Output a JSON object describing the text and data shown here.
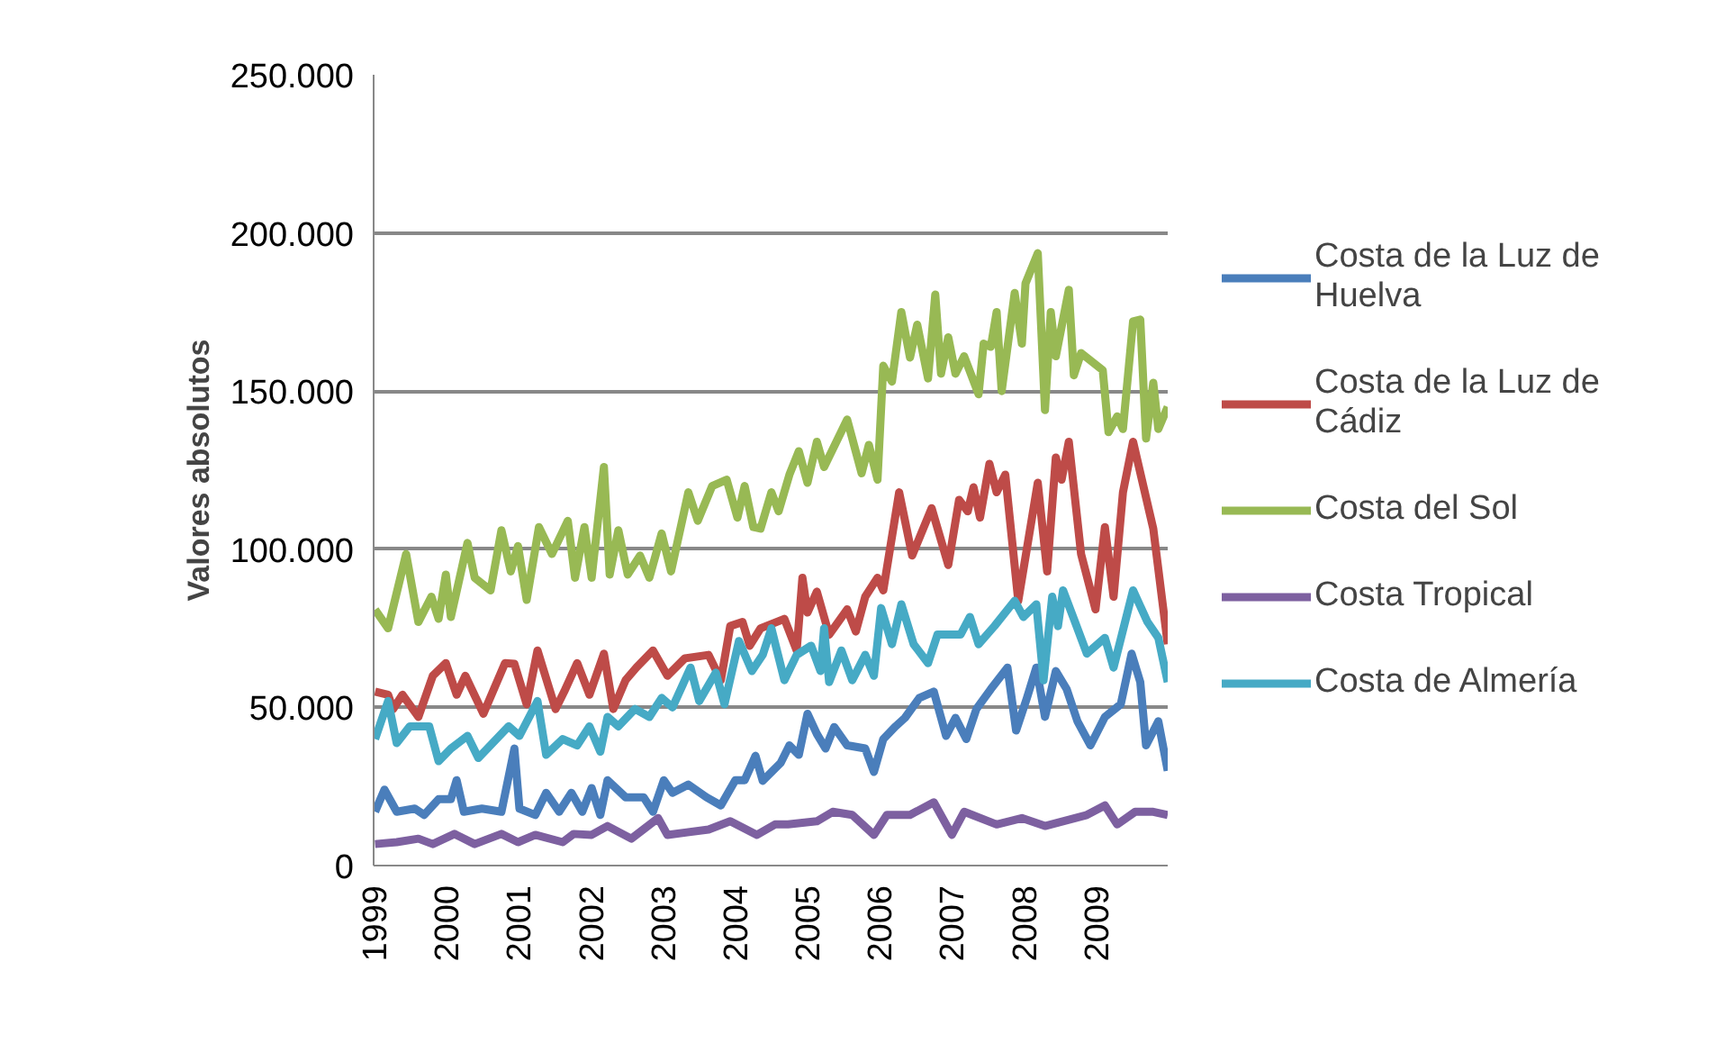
{
  "chart_data": {
    "type": "line",
    "ylabel": "Valores absolutos",
    "xlim": [
      1999,
      2010
    ],
    "xticks": [
      1999,
      2000,
      2001,
      2002,
      2003,
      2004,
      2005,
      2006,
      2007,
      2008,
      2009
    ],
    "ylim": [
      0,
      250000
    ],
    "yticks": [
      0,
      {
        "value": 50000,
        "label": "50.000"
      },
      {
        "value": 100000,
        "label": "100.000"
      },
      {
        "value": 150000,
        "label": "150.000"
      },
      {
        "value": 200000,
        "label": "200.000"
      },
      {
        "value": 250000,
        "label": "250.000"
      }
    ],
    "grid": "y",
    "legend": "right",
    "marker": "none",
    "line_style": "solid",
    "series": [
      {
        "name": "Costa de la Luz de Huelva",
        "color": "#4a7ebb",
        "x": [
          1999.02,
          1999.15,
          1999.32,
          1999.57,
          1999.7,
          1999.9,
          2000.07,
          2000.15,
          2000.25,
          2000.5,
          2000.77,
          2000.95,
          2001.02,
          2001.24,
          2001.39,
          2001.57,
          2001.74,
          2001.89,
          2002.02,
          2002.14,
          2002.24,
          2002.49,
          2002.74,
          2002.87,
          2003.02,
          2003.14,
          2003.36,
          2003.61,
          2003.81,
          2004.01,
          2004.14,
          2004.29,
          2004.39,
          2004.64,
          2004.76,
          2004.89,
          2005.01,
          2005.14,
          2005.26,
          2005.38,
          2005.56,
          2005.81,
          2005.93,
          2006.06,
          2006.23,
          2006.36,
          2006.56,
          2006.76,
          2006.93,
          2007.06,
          2007.21,
          2007.35,
          2007.55,
          2007.78,
          2007.9,
          2008.05,
          2008.18,
          2008.3,
          2008.45,
          2008.6,
          2008.75,
          2008.93,
          2009.13,
          2009.35,
          2009.5,
          2009.62,
          2009.7,
          2009.87,
          2010.0
        ],
        "values": [
          17000,
          24000,
          17000,
          18000,
          16000,
          21000,
          21000,
          27000,
          17000,
          18000,
          17000,
          37000,
          18000,
          16000,
          23000,
          17000,
          23000,
          17000,
          24500,
          16000,
          27000,
          21600,
          21600,
          17000,
          27000,
          23000,
          25600,
          21600,
          19000,
          27000,
          27000,
          34700,
          26800,
          32500,
          38000,
          35000,
          48000,
          41600,
          37000,
          43800,
          38000,
          37000,
          29600,
          40000,
          44000,
          46700,
          53000,
          55000,
          41000,
          46700,
          40000,
          49500,
          55800,
          62600,
          42700,
          53000,
          62600,
          47000,
          61500,
          55800,
          45600,
          38000,
          47000,
          51000,
          67000,
          58000,
          38000,
          45600,
          30000
        ]
      },
      {
        "name": "Costa de la Luz de Cádiz",
        "color": "#be4b48",
        "x": [
          1999.02,
          1999.2,
          1999.27,
          1999.4,
          1999.62,
          1999.82,
          2000.0,
          2000.15,
          2000.27,
          2000.52,
          2000.82,
          2000.95,
          2001.12,
          2001.27,
          2001.52,
          2001.64,
          2001.82,
          2001.99,
          2002.19,
          2002.32,
          2002.49,
          2002.64,
          2002.87,
          2003.07,
          2003.31,
          2003.64,
          2003.81,
          2003.94,
          2004.11,
          2004.21,
          2004.36,
          2004.69,
          2004.86,
          2004.94,
          2005.01,
          2005.14,
          2005.31,
          2005.56,
          2005.68,
          2005.81,
          2005.98,
          2006.06,
          2006.28,
          2006.46,
          2006.73,
          2006.96,
          2007.11,
          2007.23,
          2007.31,
          2007.4,
          2007.53,
          2007.63,
          2007.75,
          2007.93,
          2008.2,
          2008.33,
          2008.45,
          2008.53,
          2008.63,
          2008.8,
          2009.0,
          2009.13,
          2009.25,
          2009.38,
          2009.52,
          2009.8,
          2010.0
        ],
        "values": [
          55000,
          54000,
          49500,
          54000,
          47000,
          60000,
          64000,
          54000,
          60000,
          48000,
          64000,
          63800,
          51000,
          68000,
          49500,
          55000,
          64000,
          54000,
          67000,
          49500,
          58600,
          62600,
          68000,
          60000,
          65500,
          66600,
          58600,
          75700,
          77000,
          69500,
          75000,
          78000,
          68000,
          91000,
          80000,
          86600,
          73000,
          81000,
          74000,
          85000,
          91000,
          87000,
          118000,
          98000,
          113000,
          95000,
          115600,
          112000,
          119600,
          110000,
          127000,
          118000,
          123600,
          83700,
          121000,
          93000,
          129000,
          122000,
          134000,
          98500,
          81000,
          107000,
          85000,
          118000,
          134000,
          106500,
          70000
        ]
      },
      {
        "name": "Costa del Sol",
        "color": "#98b954",
        "x": [
          1999.02,
          1999.2,
          1999.45,
          1999.62,
          1999.8,
          1999.9,
          2000.0,
          2000.07,
          2000.3,
          2000.4,
          2000.62,
          2000.77,
          2000.9,
          2001.0,
          2001.12,
          2001.29,
          2001.47,
          2001.69,
          2001.79,
          2001.92,
          2002.02,
          2002.19,
          2002.27,
          2002.39,
          2002.52,
          2002.69,
          2002.82,
          2002.99,
          2003.12,
          2003.36,
          2003.49,
          2003.69,
          2003.89,
          2004.04,
          2004.14,
          2004.26,
          2004.36,
          2004.51,
          2004.61,
          2004.76,
          2004.89,
          2005.01,
          2005.14,
          2005.24,
          2005.56,
          2005.76,
          2005.86,
          2005.98,
          2006.06,
          2006.18,
          2006.31,
          2006.43,
          2006.53,
          2006.68,
          2006.78,
          2006.86,
          2006.96,
          2007.06,
          2007.18,
          2007.38,
          2007.45,
          2007.55,
          2007.63,
          2007.7,
          2007.88,
          2007.98,
          2008.03,
          2008.2,
          2008.3,
          2008.38,
          2008.45,
          2008.63,
          2008.7,
          2008.8,
          2009.1,
          2009.18,
          2009.3,
          2009.38,
          2009.52,
          2009.62,
          2009.7,
          2009.8,
          2009.87,
          2010.0
        ],
        "values": [
          80900,
          75000,
          98500,
          77000,
          85000,
          78000,
          92000,
          78600,
          102000,
          91000,
          87000,
          106000,
          93000,
          101000,
          84000,
          107000,
          98500,
          109000,
          91000,
          107000,
          91000,
          126000,
          92000,
          106000,
          92000,
          98000,
          91000,
          105000,
          93000,
          118000,
          109000,
          120000,
          122000,
          110000,
          120000,
          107000,
          106500,
          118000,
          112000,
          123600,
          131000,
          121000,
          134000,
          126000,
          141000,
          124000,
          133000,
          122000,
          158000,
          153000,
          175000,
          160600,
          171000,
          154000,
          180500,
          155500,
          167000,
          155500,
          161000,
          149000,
          165000,
          164000,
          175000,
          150000,
          181000,
          165000,
          184000,
          193600,
          144000,
          175000,
          161000,
          182000,
          155000,
          162000,
          156600,
          137000,
          142000,
          138000,
          172000,
          172600,
          135000,
          152600,
          138000,
          145000
        ]
      },
      {
        "name": "Costa Tropical",
        "color": "#7d60a0",
        "x": [
          1999.02,
          1999.32,
          1999.62,
          1999.82,
          2000.12,
          2000.4,
          2000.77,
          2001.0,
          2001.24,
          2001.62,
          2001.77,
          2002.02,
          2002.24,
          2002.57,
          2002.94,
          2003.07,
          2003.64,
          2003.94,
          2004.31,
          2004.56,
          2004.74,
          2005.14,
          2005.36,
          2005.63,
          2005.93,
          2006.11,
          2006.43,
          2006.76,
          2007.01,
          2007.18,
          2007.63,
          2007.98,
          2008.3,
          2008.88,
          2009.13,
          2009.3,
          2009.55,
          2009.8,
          2010.0
        ],
        "values": [
          6800,
          7400,
          8500,
          6800,
          10000,
          6800,
          10000,
          7400,
          9700,
          7400,
          10000,
          9700,
          12500,
          8500,
          15000,
          9700,
          11400,
          14000,
          9700,
          13000,
          13000,
          14000,
          17000,
          16000,
          9700,
          16000,
          16000,
          20000,
          9700,
          17000,
          13000,
          15000,
          12500,
          16000,
          19000,
          13000,
          17000,
          17000,
          16000
        ]
      },
      {
        "name": "Costa de Almería",
        "color": "#46aac5",
        "x": [
          1999.02,
          1999.2,
          1999.32,
          1999.5,
          1999.77,
          1999.9,
          2000.07,
          2000.3,
          2000.45,
          2000.87,
          2001.02,
          2001.27,
          2001.39,
          2001.62,
          2001.82,
          2001.99,
          2002.14,
          2002.24,
          2002.39,
          2002.62,
          2002.82,
          2002.99,
          2003.14,
          2003.39,
          2003.51,
          2003.74,
          2003.86,
          2004.06,
          2004.24,
          2004.39,
          2004.51,
          2004.69,
          2004.86,
          2005.06,
          2005.19,
          2005.24,
          2005.31,
          2005.48,
          2005.63,
          2005.81,
          2005.93,
          2006.03,
          2006.18,
          2006.31,
          2006.48,
          2006.68,
          2006.81,
          2007.13,
          2007.26,
          2007.38,
          2007.6,
          2007.88,
          2008.0,
          2008.18,
          2008.28,
          2008.4,
          2008.48,
          2008.55,
          2008.7,
          2008.88,
          2009.13,
          2009.25,
          2009.52,
          2009.72,
          2009.87,
          2010.0
        ],
        "values": [
          40000,
          52000,
          38700,
          44000,
          44000,
          33000,
          37000,
          41000,
          34000,
          44000,
          41000,
          52000,
          35000,
          40000,
          38000,
          44000,
          36000,
          47000,
          44000,
          49500,
          47000,
          53000,
          50000,
          62600,
          52000,
          61000,
          51000,
          71000,
          61500,
          66600,
          75000,
          58600,
          66600,
          69500,
          61500,
          75000,
          58000,
          68000,
          58600,
          66600,
          60000,
          81400,
          70000,
          82600,
          70000,
          64000,
          73000,
          73000,
          78600,
          70000,
          75700,
          83700,
          78600,
          82600,
          58600,
          85000,
          75700,
          87000,
          78000,
          67000,
          72000,
          62600,
          87000,
          77000,
          72000,
          58000
        ]
      }
    ]
  }
}
